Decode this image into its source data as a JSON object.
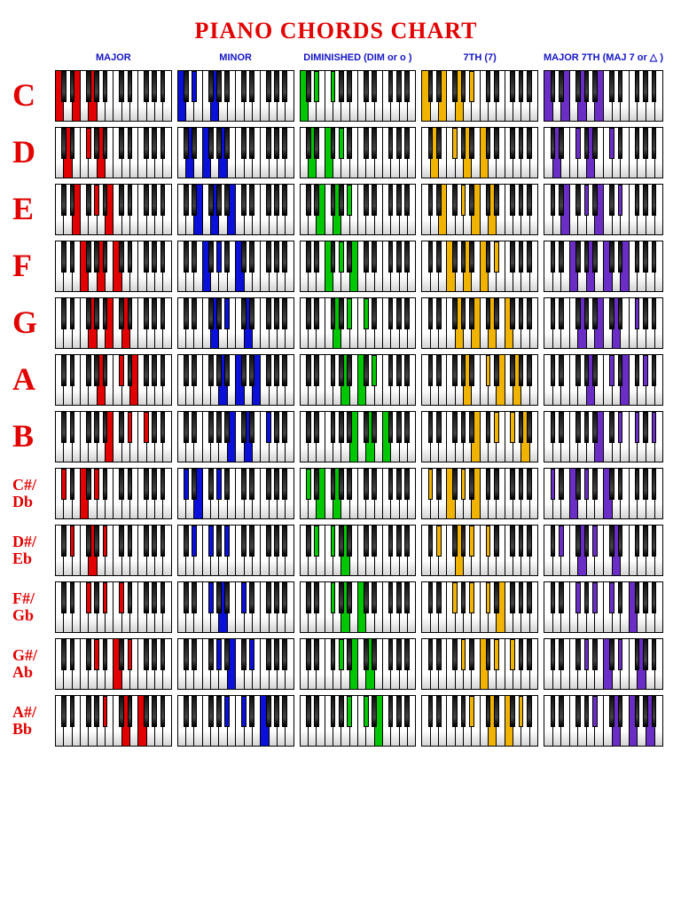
{
  "title": "PIANO CHORDS CHART",
  "columns": [
    {
      "label": "MAJOR",
      "color": "#e30000"
    },
    {
      "label": "MINOR",
      "color": "#0a10d8"
    },
    {
      "label": "DIMINISHED (DIM or o )",
      "color": "#00c800"
    },
    {
      "label": "7TH (7)",
      "color": "#f0b400"
    },
    {
      "label": "MAJOR 7TH (MAJ 7 or △ )",
      "color": "#6a2ec7"
    }
  ],
  "keyboard": {
    "white_count": 14,
    "black_pattern": [
      1,
      1,
      0,
      1,
      1,
      1,
      0
    ],
    "black_width_ratio": 0.62
  },
  "roots": [
    {
      "label": "C",
      "size": "big",
      "pc": 0
    },
    {
      "label": "D",
      "size": "big",
      "pc": 2
    },
    {
      "label": "E",
      "size": "big",
      "pc": 4
    },
    {
      "label": "F",
      "size": "big",
      "pc": 5
    },
    {
      "label": "G",
      "size": "big",
      "pc": 7
    },
    {
      "label": "A",
      "size": "big",
      "pc": 9
    },
    {
      "label": "B",
      "size": "big",
      "pc": 11
    },
    {
      "label": "C#/\nDb",
      "size": "small",
      "pc": 1
    },
    {
      "label": "D#/\nEb",
      "size": "small",
      "pc": 3
    },
    {
      "label": "F#/\nGb",
      "size": "small",
      "pc": 6
    },
    {
      "label": "G#/\nAb",
      "size": "small",
      "pc": 8
    },
    {
      "label": "A#/\nBb",
      "size": "small",
      "pc": 10
    }
  ],
  "chord_intervals": {
    "major": [
      0,
      4,
      7
    ],
    "minor": [
      0,
      3,
      7
    ],
    "dim": [
      0,
      3,
      6
    ],
    "seventh": [
      0,
      4,
      7,
      10
    ],
    "maj7": [
      0,
      4,
      7,
      11
    ]
  },
  "chord_order": [
    "major",
    "minor",
    "dim",
    "seventh",
    "maj7"
  ]
}
